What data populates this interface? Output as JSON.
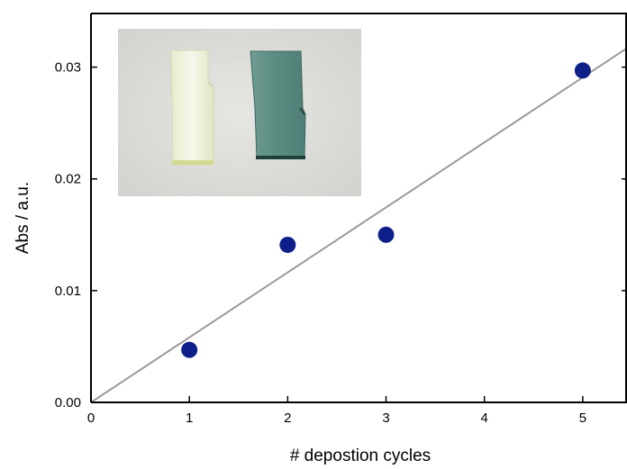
{
  "chart_data": {
    "type": "scatter",
    "title": "",
    "xlabel": "# depostion cycles",
    "ylabel": "Abs  / a.u.",
    "xlim": [
      0,
      5.45
    ],
    "ylim": [
      0,
      0.0348
    ],
    "x_ticks": [
      {
        "value": 0,
        "label": "0"
      },
      {
        "value": 1,
        "label": "1"
      },
      {
        "value": 2,
        "label": "2"
      },
      {
        "value": 3,
        "label": "3"
      },
      {
        "value": 4,
        "label": "4"
      },
      {
        "value": 5,
        "label": "5"
      }
    ],
    "y_ticks": [
      {
        "value": 0,
        "label": "0.00"
      },
      {
        "value": 0.01,
        "label": "0.01"
      },
      {
        "value": 0.02,
        "label": "0.02"
      },
      {
        "value": 0.03,
        "label": "0.03"
      }
    ],
    "series": [
      {
        "x": [
          1,
          2,
          3,
          5
        ],
        "y": [
          0.0047,
          0.0141,
          0.015,
          0.0297
        ]
      }
    ],
    "fit_line": {
      "x": [
        0,
        5.45
      ],
      "y": [
        0,
        0.0317
      ]
    },
    "grid": false,
    "legend": "none",
    "colors": {
      "marker": "#0f1f8a",
      "fit_line": "#9a9a9a",
      "axis": "#000000"
    },
    "inset_photo": {
      "description_icon": "photo-inset-icon",
      "colors": {
        "background": "#dcdcd8",
        "clear_slide": "#f1f2e2",
        "clear_slide_edge": "#c9d08c",
        "coated_slide": "#5e8f85",
        "coated_slide_edge": "#1f3f3a"
      }
    }
  }
}
